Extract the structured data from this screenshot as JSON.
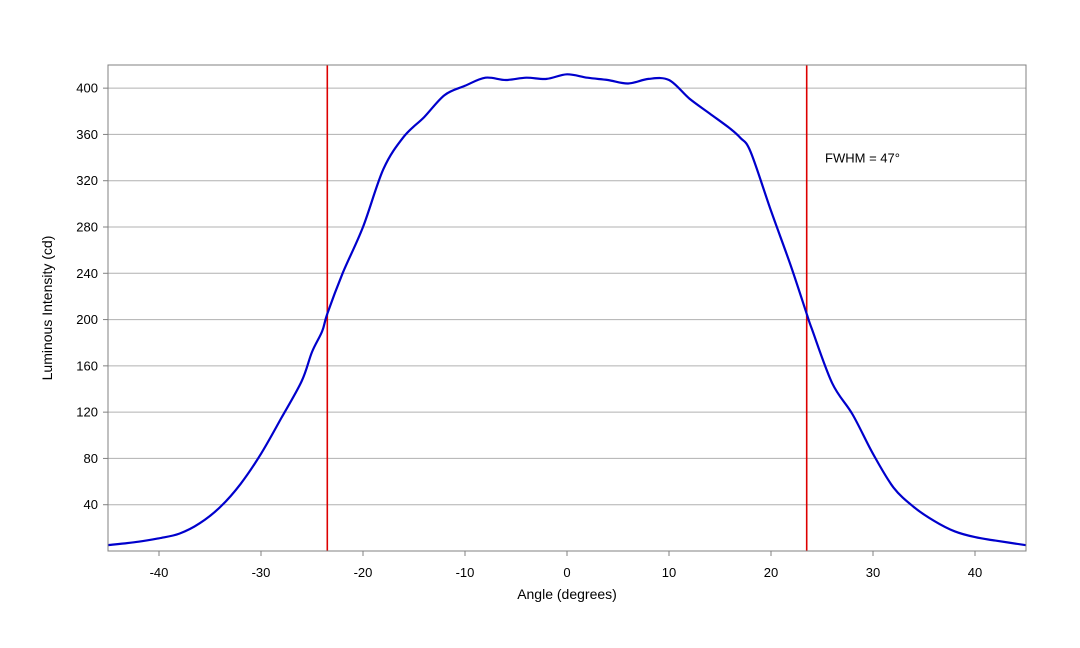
{
  "chart_data": {
    "type": "line",
    "title": "",
    "xlabel": "Angle (degrees)",
    "ylabel": "Luminous Intensity (cd)",
    "xlim": [
      -45,
      45
    ],
    "ylim": [
      0,
      420
    ],
    "x_ticks": [
      -40,
      -30,
      -20,
      -10,
      0,
      10,
      20,
      30,
      40
    ],
    "y_ticks": [
      40,
      80,
      120,
      160,
      200,
      240,
      280,
      320,
      360,
      400
    ],
    "grid": "horizontal",
    "series": [
      {
        "color": "#0000cc",
        "x": [
          -45,
          -42,
          -40,
          -38,
          -36,
          -34,
          -32,
          -30,
          -28,
          -26,
          -25,
          -24,
          -23.5,
          -22,
          -20,
          -18,
          -16,
          -14,
          -12,
          -10,
          -8,
          -6,
          -4,
          -2,
          0,
          2,
          4,
          6,
          8,
          10,
          12,
          14,
          16,
          17,
          18,
          20,
          22,
          23.5,
          24,
          26,
          28,
          30,
          32,
          34,
          36,
          38,
          40,
          42,
          45
        ],
        "y": [
          5,
          8,
          11,
          15,
          24,
          38,
          58,
          84,
          115,
          147,
          172,
          190,
          205,
          240,
          280,
          330,
          358,
          375,
          394,
          402,
          409,
          407,
          409,
          408,
          412,
          409,
          407,
          404,
          408,
          407,
          391,
          378,
          365,
          357,
          345,
          294,
          245,
          205,
          192,
          145,
          118,
          84,
          55,
          38,
          26,
          17,
          12,
          9,
          5
        ]
      }
    ],
    "reference_lines": [
      {
        "axis": "x",
        "value": -23.5,
        "color": "#dd0000"
      },
      {
        "axis": "x",
        "value": 23.5,
        "color": "#dd0000"
      }
    ],
    "annotations": [
      {
        "text": "FWHM = 47°",
        "x": 25.3,
        "y": 340
      }
    ]
  },
  "colors": {
    "plot_border": "#808080",
    "grid": "#b0b0b0",
    "curve": "#0000cc",
    "marker_lines": "#dd0000"
  }
}
